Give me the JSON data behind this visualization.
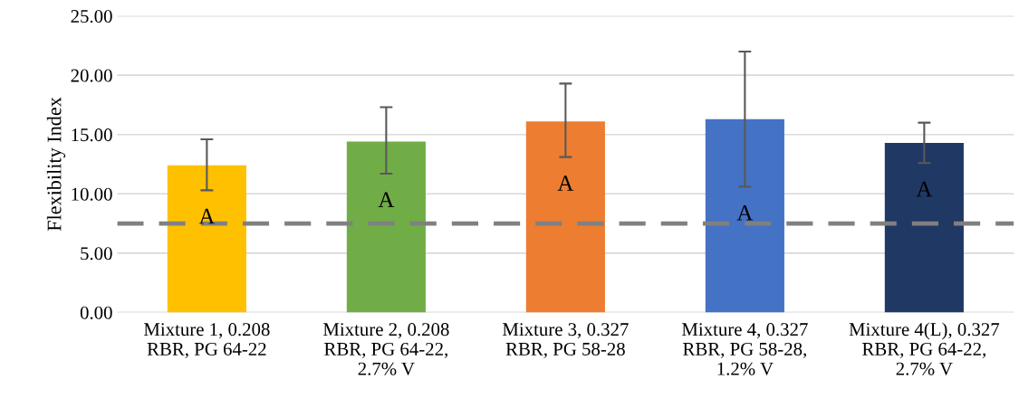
{
  "chart_data": {
    "type": "bar",
    "ylabel": "Flexibility Index",
    "categories": [
      "Mixture 1, 0.208\nRBR, PG 64-22",
      "Mixture 2, 0.208\nRBR, PG 64-22,\n2.7% V",
      "Mixture 3, 0.327\nRBR, PG 58-28",
      "Mixture 4, 0.327\nRBR, PG 58-28,\n1.2% V",
      "Mixture 4(L), 0.327\nRBR, PG 64-22,\n2.7% V"
    ],
    "values": [
      12.4,
      14.4,
      16.1,
      16.3,
      14.3
    ],
    "colors": [
      "#ffc000",
      "#70ad47",
      "#ed7d31",
      "#4472c4",
      "#203864"
    ],
    "errors": [
      [
        10.3,
        14.6
      ],
      [
        11.7,
        17.3
      ],
      [
        13.1,
        19.3
      ],
      [
        10.6,
        22.0
      ],
      [
        12.6,
        16.0
      ]
    ],
    "ylim": [
      0,
      25
    ],
    "yticks": [
      {
        "value": 0,
        "label": "0.00"
      },
      {
        "value": 5,
        "label": "5.00"
      },
      {
        "value": 10,
        "label": "10.00"
      },
      {
        "value": 15,
        "label": "15.00"
      },
      {
        "value": 20,
        "label": "20.00"
      },
      {
        "value": 25,
        "label": "25.00"
      }
    ],
    "grid": "y",
    "ref_lines": [
      {
        "axis": "y",
        "value": 7.5,
        "color": "#808080",
        "line_style": "dashed"
      }
    ],
    "annotations": [
      "A",
      "A",
      "A",
      "A",
      "A"
    ]
  }
}
